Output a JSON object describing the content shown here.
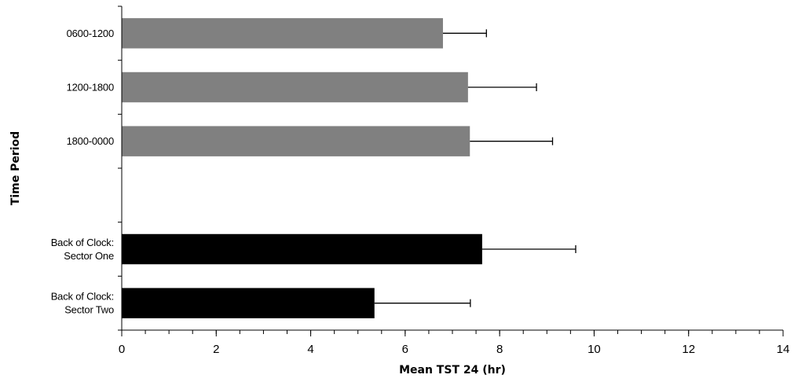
{
  "chart_data": {
    "type": "bar",
    "orientation": "horizontal",
    "xlabel": "Mean TST 24 (hr)",
    "ylabel": "Time Period",
    "xlim": [
      0,
      14
    ],
    "x_major_ticks": [
      0,
      2,
      4,
      6,
      8,
      10,
      12,
      14
    ],
    "x_minor_step": 0.5,
    "grid": false,
    "legend": "none",
    "categories": [
      "0600-1200",
      "1200-1800",
      "1800-0000",
      "",
      "Back of Clock:\nSector One",
      "Back of Clock:\nSector Two"
    ],
    "values": [
      6.8,
      7.33,
      7.37,
      null,
      7.63,
      5.35
    ],
    "error_plus": [
      0.92,
      1.45,
      1.75,
      null,
      1.98,
      2.03
    ],
    "colors": [
      "#808080",
      "#808080",
      "#808080",
      null,
      "#000000",
      "#000000"
    ]
  }
}
